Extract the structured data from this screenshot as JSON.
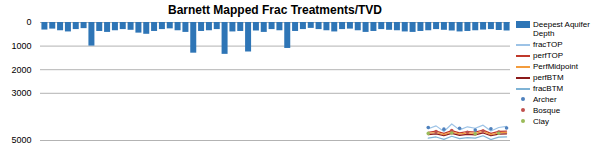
{
  "chart_data": {
    "type": "bar",
    "title": "Barnett Mapped Frac Treatments/TVD",
    "x": [
      1,
      2,
      3,
      4,
      5,
      6,
      7,
      8,
      9,
      10,
      11,
      12,
      13,
      14,
      15,
      16,
      17,
      18,
      19,
      20,
      21,
      22,
      23,
      24,
      25,
      26,
      27,
      28,
      29,
      30,
      31,
      32,
      33,
      34,
      35,
      36,
      37,
      38,
      39,
      40,
      41,
      42,
      43,
      44,
      45,
      46,
      47,
      48,
      49,
      50,
      51,
      52,
      53,
      54,
      55,
      56,
      57,
      58,
      59,
      60
    ],
    "xlim": [
      0.5,
      60.5
    ],
    "ylim": [
      0,
      5000
    ],
    "yticks": [
      0,
      1000,
      2000,
      3000,
      5000
    ],
    "grid": true,
    "tick_labels": "y",
    "legend": "right",
    "series": [
      {
        "name": "Deepest Aquifer Depth",
        "type": "bar",
        "color": "#2e75b6",
        "values": [
          320,
          280,
          350,
          400,
          300,
          260,
          1000,
          380,
          420,
          350,
          300,
          330,
          450,
          500,
          380,
          300,
          270,
          350,
          420,
          1300,
          380,
          350,
          300,
          1350,
          400,
          380,
          1250,
          360,
          420,
          300,
          350,
          1100,
          380,
          300,
          250,
          300,
          350,
          400,
          300,
          280,
          350,
          420,
          380,
          300,
          330,
          350,
          400,
          420,
          380,
          350,
          300,
          330,
          360,
          400,
          380,
          350,
          320,
          300,
          340,
          360
        ]
      },
      {
        "name": "fracTOP",
        "type": "line",
        "color": "#9dc3e6",
        "values": [
          null,
          null,
          null,
          null,
          null,
          null,
          null,
          null,
          null,
          null,
          null,
          null,
          null,
          null,
          null,
          null,
          null,
          null,
          null,
          null,
          null,
          null,
          null,
          null,
          null,
          null,
          null,
          null,
          null,
          null,
          null,
          null,
          null,
          null,
          null,
          null,
          null,
          null,
          null,
          null,
          null,
          null,
          null,
          null,
          null,
          null,
          null,
          null,
          null,
          4500,
          4380,
          4620,
          4300,
          4550,
          4420,
          4480,
          4350,
          4600,
          4450,
          4400
        ]
      },
      {
        "name": "perfTOP",
        "type": "line",
        "color": "#c0392b",
        "values": [
          null,
          null,
          null,
          null,
          null,
          null,
          null,
          null,
          null,
          null,
          null,
          null,
          null,
          null,
          null,
          null,
          null,
          null,
          null,
          null,
          null,
          null,
          null,
          null,
          null,
          null,
          null,
          null,
          null,
          null,
          null,
          null,
          null,
          null,
          null,
          null,
          null,
          null,
          null,
          null,
          null,
          null,
          null,
          null,
          null,
          null,
          null,
          null,
          null,
          4650,
          4600,
          4700,
          4580,
          4680,
          4620,
          4640,
          4560,
          4700,
          4610,
          4600
        ]
      },
      {
        "name": "PerfMidpoint",
        "type": "line",
        "color": "#f39c3c",
        "values": [
          null,
          null,
          null,
          null,
          null,
          null,
          null,
          null,
          null,
          null,
          null,
          null,
          null,
          null,
          null,
          null,
          null,
          null,
          null,
          null,
          null,
          null,
          null,
          null,
          null,
          null,
          null,
          null,
          null,
          null,
          null,
          null,
          null,
          null,
          null,
          null,
          null,
          null,
          null,
          null,
          null,
          null,
          null,
          null,
          null,
          null,
          null,
          null,
          null,
          4700,
          4660,
          4750,
          4640,
          4730,
          4680,
          4700,
          4620,
          4750,
          4670,
          4660
        ]
      },
      {
        "name": "perfBTM",
        "type": "line",
        "color": "#8b1a1a",
        "values": [
          null,
          null,
          null,
          null,
          null,
          null,
          null,
          null,
          null,
          null,
          null,
          null,
          null,
          null,
          null,
          null,
          null,
          null,
          null,
          null,
          null,
          null,
          null,
          null,
          null,
          null,
          null,
          null,
          null,
          null,
          null,
          null,
          null,
          null,
          null,
          null,
          null,
          null,
          null,
          null,
          null,
          null,
          null,
          null,
          null,
          null,
          null,
          null,
          null,
          4750,
          4720,
          4800,
          4700,
          4780,
          4740,
          4760,
          4680,
          4800,
          4730,
          4720
        ]
      },
      {
        "name": "fracBTM",
        "type": "line",
        "color": "#7fb3d5",
        "values": [
          null,
          null,
          null,
          null,
          null,
          null,
          null,
          null,
          null,
          null,
          null,
          null,
          null,
          null,
          null,
          null,
          null,
          null,
          null,
          null,
          null,
          null,
          null,
          null,
          null,
          null,
          null,
          null,
          null,
          null,
          null,
          null,
          null,
          null,
          null,
          null,
          null,
          null,
          null,
          null,
          null,
          null,
          null,
          null,
          null,
          null,
          null,
          null,
          null,
          4900,
          4850,
          4950,
          4820,
          4920,
          4880,
          4900,
          4800,
          4960,
          4860,
          4850
        ]
      },
      {
        "name": "Archer",
        "type": "scatter",
        "color": "#4f81bd",
        "values": [
          null,
          null,
          null,
          null,
          null,
          null,
          null,
          null,
          null,
          null,
          null,
          null,
          null,
          null,
          null,
          null,
          null,
          null,
          null,
          null,
          null,
          null,
          null,
          null,
          null,
          null,
          null,
          null,
          null,
          null,
          null,
          null,
          null,
          null,
          null,
          null,
          null,
          null,
          null,
          null,
          null,
          null,
          null,
          null,
          null,
          null,
          null,
          null,
          null,
          4450,
          null,
          4520,
          null,
          4480,
          null,
          4560,
          null,
          4500,
          null,
          4470
        ]
      },
      {
        "name": "Bosque",
        "type": "scatter",
        "color": "#c0504d",
        "values": [
          null,
          null,
          null,
          null,
          null,
          null,
          null,
          null,
          null,
          null,
          null,
          null,
          null,
          null,
          null,
          null,
          null,
          null,
          null,
          null,
          null,
          null,
          null,
          null,
          null,
          null,
          null,
          null,
          null,
          null,
          null,
          null,
          null,
          null,
          null,
          null,
          null,
          null,
          null,
          null,
          null,
          null,
          null,
          null,
          null,
          null,
          null,
          null,
          null,
          null,
          4620,
          null,
          4580,
          null,
          4650,
          null,
          4600,
          null,
          4640,
          null
        ]
      },
      {
        "name": "Clay",
        "type": "scatter",
        "color": "#9bbb59",
        "values": [
          null,
          null,
          null,
          null,
          null,
          null,
          null,
          null,
          null,
          null,
          null,
          null,
          null,
          null,
          null,
          null,
          null,
          null,
          null,
          null,
          null,
          null,
          null,
          null,
          null,
          null,
          null,
          null,
          null,
          null,
          null,
          null,
          null,
          null,
          null,
          null,
          null,
          null,
          null,
          null,
          null,
          null,
          null,
          null,
          null,
          null,
          null,
          null,
          null,
          4700,
          null,
          null,
          4680,
          null,
          null,
          4720,
          null,
          null,
          4690,
          null
        ]
      }
    ]
  }
}
